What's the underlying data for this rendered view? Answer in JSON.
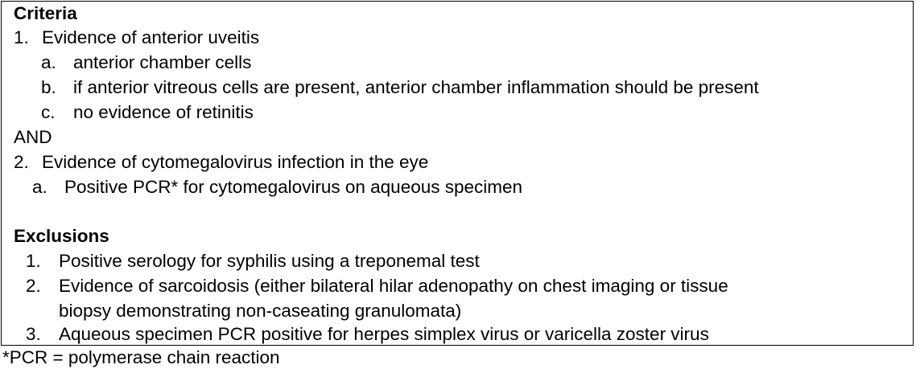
{
  "criteria": {
    "heading": "Criteria",
    "item1": {
      "num": "1.",
      "text": "Evidence of anterior uveitis"
    },
    "item1_subs": [
      {
        "num": "a.",
        "text": "anterior chamber cells"
      },
      {
        "num": "b.",
        "text": "if anterior vitreous cells are present, anterior chamber inflammation should be present"
      },
      {
        "num": "c.",
        "text": "no evidence of retinitis"
      }
    ],
    "connector": "AND",
    "item2": {
      "num": "2.",
      "text": "Evidence of cytomegalovirus infection in the eye"
    },
    "item2_subs": [
      {
        "num": "a.",
        "text": "Positive PCR* for cytomegalovirus on aqueous specimen"
      }
    ]
  },
  "exclusions": {
    "heading": "Exclusions",
    "items": [
      {
        "num": "1.",
        "lines": [
          "Positive serology for syphilis using a treponemal test"
        ]
      },
      {
        "num": "2.",
        "lines": [
          "Evidence of sarcoidosis (either bilateral hilar adenopathy on chest imaging or tissue",
          "biopsy demonstrating non-caseating granulomata)"
        ]
      },
      {
        "num": "3.",
        "lines": [
          "Aqueous specimen PCR positive for herpes simplex virus or varicella zoster virus"
        ]
      }
    ]
  },
  "footnote": "*PCR = polymerase chain reaction"
}
